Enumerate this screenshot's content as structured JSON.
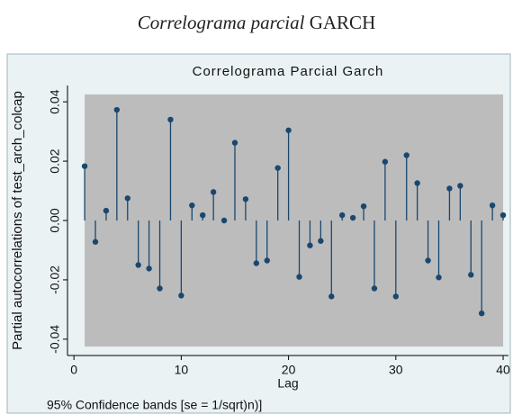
{
  "figure_caption": [
    "Correlograma parcial",
    "GARCH"
  ],
  "chart_data": {
    "type": "stem",
    "title": "Correlograma Parcial Garch",
    "x_label": "Lag",
    "y_label": "Partial autocorrelations of test_arch_colcap",
    "note": "95% Confidence bands [se = 1/sqrt)n)]",
    "x": [
      1,
      2,
      3,
      4,
      5,
      6,
      7,
      8,
      9,
      10,
      11,
      12,
      13,
      14,
      15,
      16,
      17,
      18,
      19,
      20,
      21,
      22,
      23,
      24,
      25,
      26,
      27,
      28,
      29,
      30,
      31,
      32,
      33,
      34,
      35,
      36,
      37,
      38,
      39,
      40
    ],
    "values": [
      0.0183,
      -0.0072,
      0.0033,
      0.0373,
      0.0075,
      -0.015,
      -0.0162,
      -0.0229,
      0.034,
      -0.0253,
      0.0051,
      0.0018,
      0.0096,
      0.0,
      0.0262,
      0.0072,
      -0.0144,
      -0.0135,
      0.0177,
      0.0304,
      -0.019,
      -0.0084,
      -0.0069,
      -0.0256,
      0.0018,
      0.0009,
      0.0048,
      -0.0229,
      0.0198,
      -0.0256,
      0.022,
      0.0126,
      -0.0135,
      -0.0192,
      0.0108,
      0.0117,
      -0.0183,
      -0.0313,
      0.0051,
      0.0018
    ],
    "confidence_band": 0.0425,
    "band_color": "#bcbcbc",
    "color": "#1a476f",
    "xlim": [
      -0.6,
      40.5
    ],
    "xticks": [
      0,
      10,
      20,
      30,
      40
    ],
    "ylim": [
      -0.0455,
      0.0455
    ],
    "yticks": [
      0.04,
      0.02,
      {
        "value": 0,
        "label": "0.00"
      },
      -0.02,
      -0.04
    ]
  }
}
